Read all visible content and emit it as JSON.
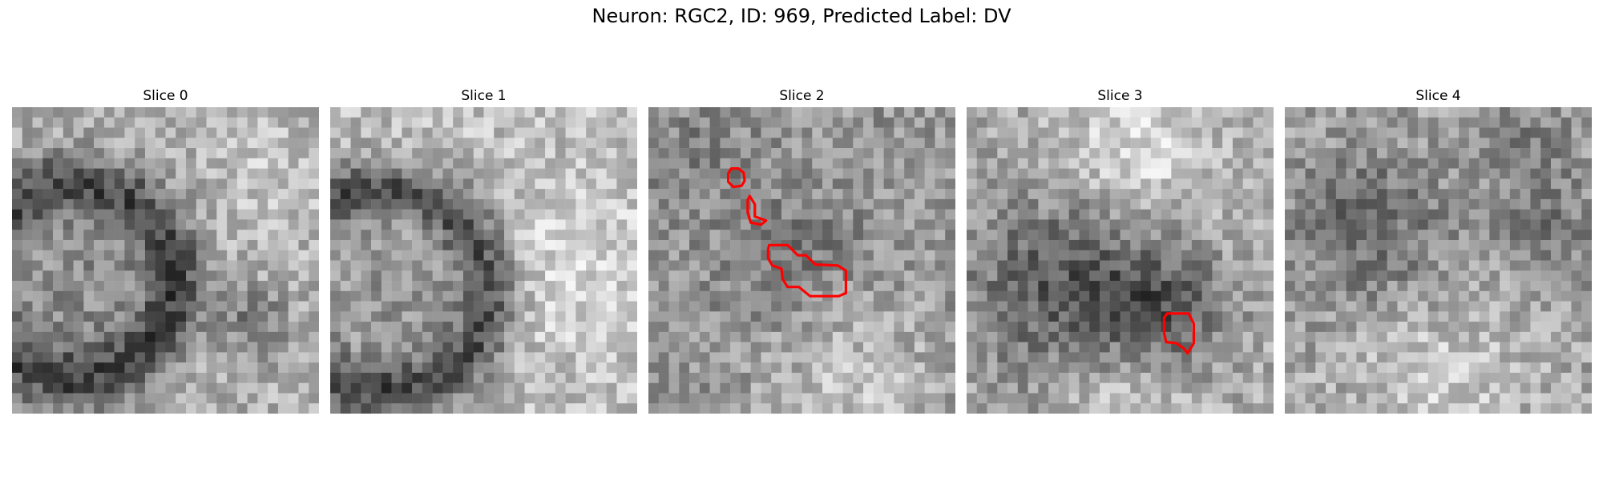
{
  "figure": {
    "title": "Neuron: RGC2, ID: 969, Predicted Label: DV"
  },
  "panels": [
    {
      "title": "Slice 0"
    },
    {
      "title": "Slice 1"
    },
    {
      "title": "Slice 2"
    },
    {
      "title": "Slice 3"
    },
    {
      "title": "Slice 4"
    }
  ],
  "contour_color": "#ff0000"
}
